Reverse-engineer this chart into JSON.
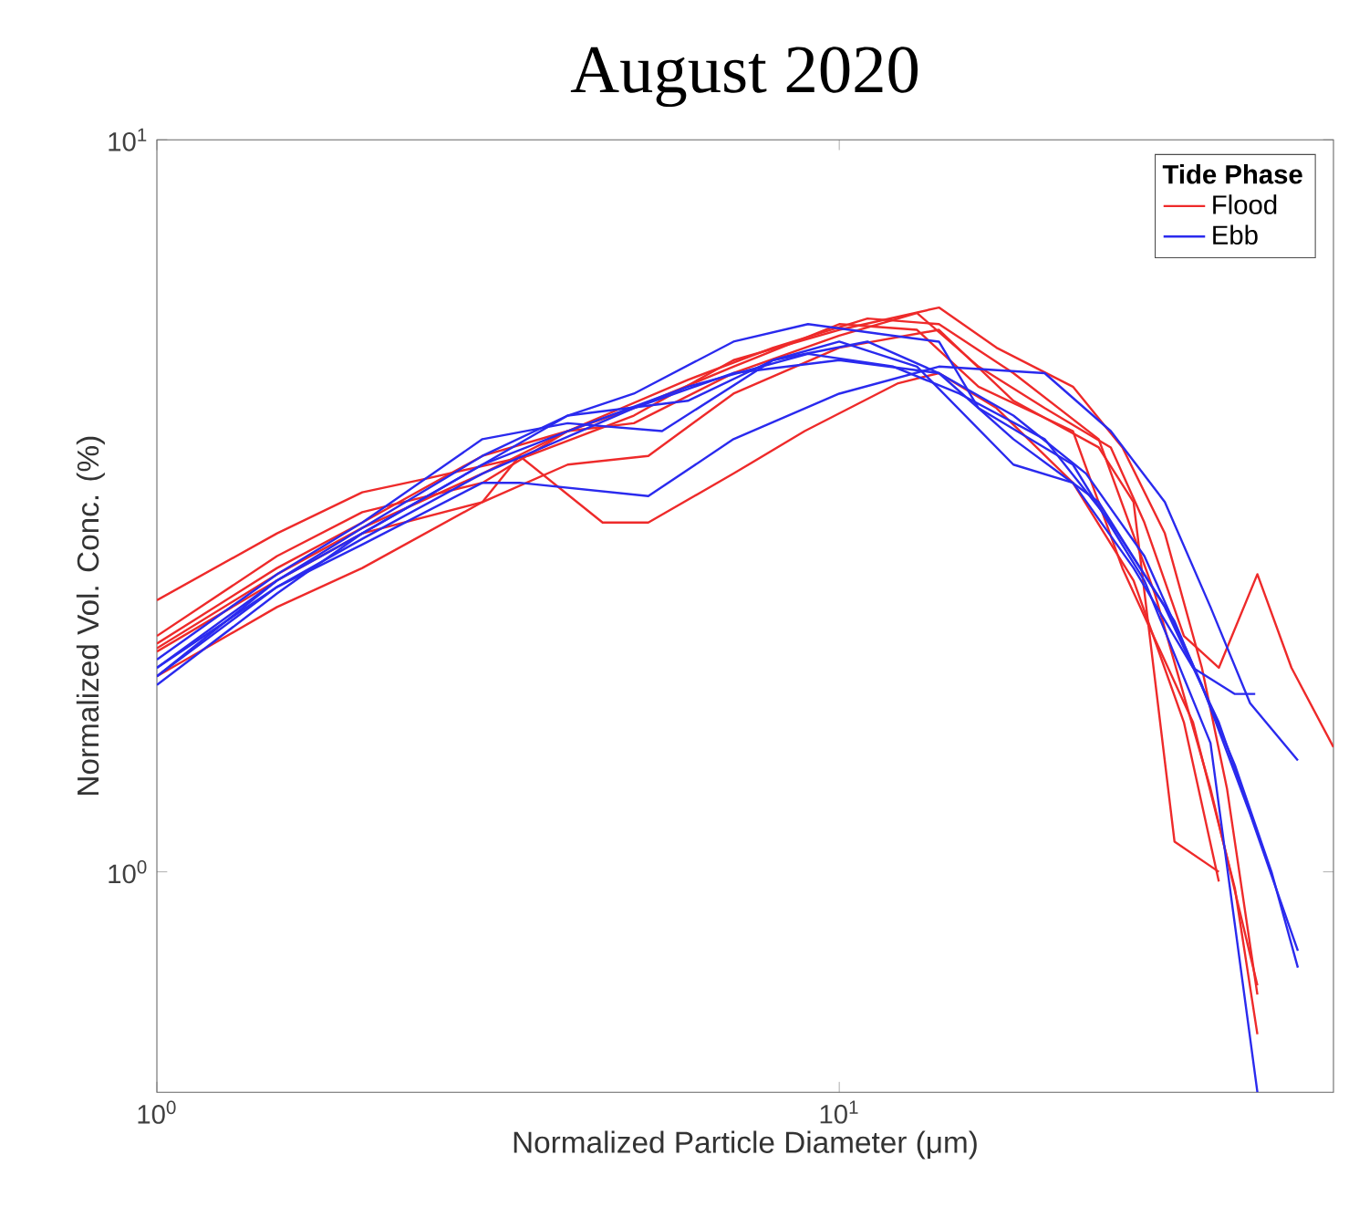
{
  "chart_data": {
    "type": "line",
    "title": "August 2020",
    "xlabel": "Normalized Particle Diameter (μm)",
    "ylabel": "Normalized Vol. Conc. (%)",
    "legend_title": "Tide Phase",
    "log": "xy",
    "legend": "top right",
    "xlim": [
      1,
      53
    ],
    "ylim": [
      0.5,
      10
    ],
    "xticks": [
      {
        "value": 1,
        "label": "10$^{0}$"
      },
      {
        "value": 10,
        "label": "10$^{1}$"
      }
    ],
    "yticks": [
      {
        "value": 1,
        "label": "10$^{0}$"
      },
      {
        "value": 10,
        "label": "10$^{1}$"
      }
    ],
    "series": [
      {
        "name": "Flood",
        "color": "#ee2a2a",
        "x": [
          1,
          1.5,
          2,
          2.5,
          3.5,
          5,
          7,
          10,
          14,
          17,
          22,
          26,
          30,
          34,
          37,
          41
        ],
        "values": [
          2.35,
          2.9,
          3.3,
          3.45,
          3.7,
          4.2,
          5.0,
          5.5,
          5.9,
          5.2,
          4.6,
          3.8,
          2.9,
          1.9,
          1.3,
          0.68
        ]
      },
      {
        "color": "#ee2a2a",
        "x": [
          1,
          1.5,
          2,
          3,
          4,
          5,
          7,
          10,
          13,
          16,
          20,
          25,
          28,
          32,
          36,
          41,
          46,
          53
        ],
        "values": [
          2.1,
          2.7,
          3.1,
          3.4,
          4.0,
          4.1,
          4.8,
          5.4,
          5.8,
          4.9,
          4.3,
          3.8,
          3.0,
          2.1,
          1.9,
          2.55,
          1.9,
          1.48
        ]
      },
      {
        "color": "#ee2a2a",
        "x": [
          1,
          1.5,
          2,
          3,
          3.4,
          4.5,
          5.25,
          7,
          8.9,
          12.2,
          14,
          17,
          22,
          27,
          32,
          36
        ],
        "values": [
          1.85,
          2.3,
          2.6,
          3.2,
          3.7,
          3.0,
          3.0,
          3.5,
          4.0,
          4.65,
          4.8,
          4.3,
          3.4,
          2.5,
          1.6,
          0.97
        ]
      },
      {
        "color": "#ee2a2a",
        "x": [
          1,
          1.5,
          2,
          3,
          4,
          5.25,
          7,
          10,
          14,
          18,
          24,
          27,
          31,
          36
        ],
        "values": [
          2.0,
          2.5,
          2.9,
          3.2,
          3.6,
          3.7,
          4.5,
          5.2,
          5.5,
          4.4,
          3.8,
          3.2,
          1.1,
          1.0
        ]
      },
      {
        "color": "#ee2a2a",
        "x": [
          1,
          1.5,
          2,
          3,
          4,
          5,
          7,
          10,
          13,
          16,
          22,
          26,
          33,
          38,
          41
        ],
        "values": [
          2.02,
          2.55,
          2.95,
          3.5,
          4.0,
          4.3,
          4.9,
          5.6,
          5.5,
          4.6,
          4.0,
          2.6,
          1.6,
          0.95,
          0.6
        ]
      },
      {
        "color": "#ee2a2a",
        "x": [
          1,
          1.5,
          2,
          3,
          4,
          6,
          8,
          11,
          14,
          18,
          24,
          29,
          35,
          41
        ],
        "values": [
          2.05,
          2.6,
          3.0,
          3.7,
          4.0,
          4.7,
          5.2,
          5.7,
          5.6,
          4.8,
          3.9,
          2.4,
          1.3,
          0.7
        ]
      },
      {
        "name": "Ebb",
        "color": "#2a2aee",
        "x": [
          1,
          1.5,
          2,
          3,
          4,
          5,
          7,
          9,
          12,
          14,
          16,
          22,
          28,
          35,
          41
        ],
        "values": [
          1.8,
          2.4,
          2.9,
          3.6,
          4.2,
          4.5,
          5.3,
          5.6,
          5.4,
          5.3,
          4.3,
          3.6,
          2.5,
          1.5,
          0.5
        ]
      },
      {
        "color": "#2a2aee",
        "x": [
          1,
          1.5,
          2,
          3,
          3.4,
          5.25,
          7,
          10,
          14,
          20,
          25,
          30,
          35,
          40,
          47
        ],
        "values": [
          1.85,
          2.45,
          2.8,
          3.4,
          3.4,
          3.26,
          3.9,
          4.5,
          4.9,
          4.8,
          4.0,
          3.2,
          2.3,
          1.7,
          1.42
        ]
      },
      {
        "color": "#2a2aee",
        "x": [
          1,
          1.5,
          2,
          3,
          4,
          6,
          8,
          10,
          13,
          18,
          22,
          27,
          33,
          38,
          40.7
        ],
        "values": [
          1.9,
          2.5,
          2.95,
          3.7,
          4.2,
          4.4,
          5.0,
          5.3,
          4.9,
          3.6,
          3.4,
          2.6,
          1.9,
          1.75,
          1.75
        ]
      },
      {
        "color": "#2a2aee",
        "x": [
          1,
          1.5,
          2,
          3,
          4,
          5.5,
          8,
          11,
          14,
          18,
          24,
          30,
          36,
          41
        ],
        "values": [
          1.95,
          2.55,
          3.0,
          3.9,
          4.1,
          4.0,
          5.0,
          5.3,
          4.8,
          3.9,
          3.2,
          2.3,
          1.6,
          1.13
        ]
      },
      {
        "color": "#2a2aee",
        "x": [
          1,
          1.5,
          2,
          3,
          4,
          6,
          9,
          12,
          15,
          20,
          25,
          31,
          38,
          43,
          47
        ],
        "values": [
          1.85,
          2.5,
          2.9,
          3.6,
          4.0,
          4.6,
          5.1,
          4.9,
          4.5,
          3.9,
          3.0,
          2.2,
          1.4,
          1.0,
          0.74
        ]
      },
      {
        "color": "#2a2aee",
        "x": [
          1,
          1.5,
          2,
          3,
          5,
          7,
          10,
          14,
          18,
          23,
          28,
          34,
          40,
          47
        ],
        "values": [
          1.9,
          2.45,
          2.85,
          3.5,
          4.3,
          4.8,
          5.0,
          4.8,
          4.2,
          3.5,
          2.7,
          1.8,
          1.2,
          0.78
        ]
      }
    ]
  }
}
